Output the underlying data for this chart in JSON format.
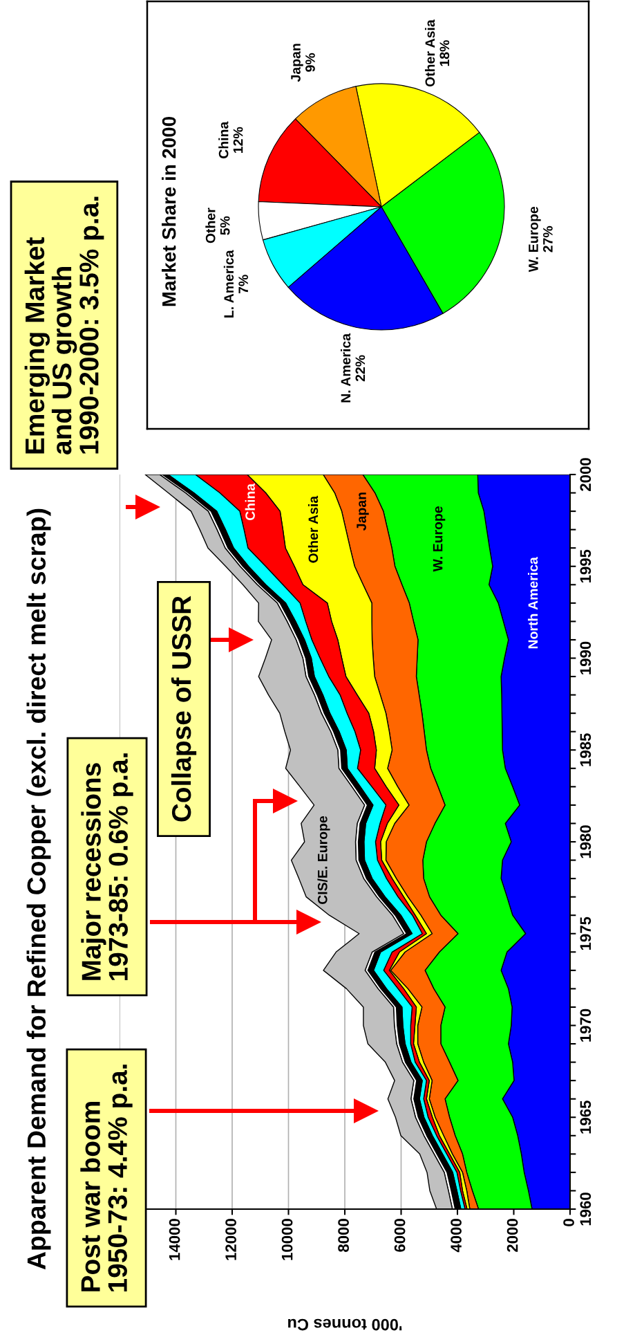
{
  "chart_data": [
    {
      "type": "area",
      "title": "Apparent Demand for Refined Copper (excl. direct melt scrap)",
      "xlabel": "'000 tonnes Cu",
      "stacked": true,
      "orientation": "horizontal",
      "grid": "x",
      "x": [
        1960,
        1961,
        1962,
        1963,
        1964,
        1965,
        1966,
        1967,
        1968,
        1969,
        1970,
        1971,
        1972,
        1973,
        1974,
        1975,
        1976,
        1977,
        1978,
        1979,
        1980,
        1981,
        1982,
        1983,
        1984,
        1985,
        1986,
        1987,
        1988,
        1989,
        1990,
        1991,
        1992,
        1993,
        1994,
        1995,
        1996,
        1997,
        1998,
        1999,
        2000
      ],
      "series": [
        {
          "name": "North America",
          "color": "#0000ff",
          "values": [
            1350,
            1480,
            1630,
            1730,
            1860,
            2040,
            2400,
            1990,
            2040,
            2190,
            2090,
            2060,
            2190,
            2450,
            2240,
            1580,
            2040,
            2240,
            2450,
            2400,
            2090,
            2300,
            1790,
            2040,
            2300,
            2400,
            2410,
            2420,
            2430,
            2450,
            2330,
            2190,
            2370,
            2550,
            2880,
            2750,
            2860,
            2960,
            3060,
            3260,
            3280
          ]
        },
        {
          "name": "W. Europe",
          "color": "#00ff00",
          "values": [
            1900,
            1990,
            2040,
            2090,
            2220,
            2240,
            2040,
            1990,
            2240,
            2400,
            2500,
            2380,
            2650,
            2700,
            2400,
            2400,
            2550,
            2750,
            2750,
            2830,
            3010,
            2500,
            2650,
            2650,
            2650,
            2700,
            2770,
            2840,
            2930,
            3010,
            3100,
            3210,
            3190,
            3160,
            3090,
            3470,
            3470,
            3520,
            3570,
            3670,
            4080
          ]
        },
        {
          "name": "Japan",
          "color": "#ff6600",
          "values": [
            310,
            200,
            150,
            360,
            410,
            510,
            560,
            920,
            920,
            820,
            820,
            820,
            920,
            1220,
            1220,
            920,
            710,
            770,
            970,
            1310,
            1430,
            1430,
            1280,
            1430,
            1530,
            1220,
            1240,
            1280,
            1380,
            1480,
            1560,
            1630,
            1480,
            1330,
            1380,
            1430,
            1480,
            1480,
            1480,
            1430,
            1410
          ]
        },
        {
          "name": "Other Asia",
          "color": "#ffff00",
          "values": [
            100,
            150,
            100,
            100,
            150,
            100,
            100,
            100,
            150,
            150,
            100,
            200,
            150,
            50,
            200,
            200,
            200,
            150,
            150,
            150,
            200,
            260,
            360,
            410,
            460,
            560,
            560,
            610,
            820,
            1020,
            1120,
            1220,
            1430,
            1580,
            2140,
            2140,
            2300,
            2240,
            2190,
            2450,
            2700
          ]
        },
        {
          "name": "China",
          "color": "#ff0000",
          "values": [
            70,
            70,
            100,
            100,
            100,
            150,
            100,
            100,
            150,
            100,
            150,
            150,
            200,
            200,
            260,
            150,
            100,
            200,
            200,
            150,
            180,
            260,
            460,
            510,
            610,
            560,
            660,
            770,
            610,
            610,
            770,
            920,
            920,
            970,
            710,
            1020,
            1330,
            1380,
            1430,
            1630,
            1840
          ]
        },
        {
          "color": "#00ffff",
          "values": [
            150,
            130,
            150,
            150,
            150,
            150,
            150,
            150,
            150,
            200,
            280,
            360,
            410,
            360,
            410,
            360,
            410,
            460,
            510,
            460,
            410,
            510,
            460,
            410,
            360,
            510,
            560,
            610,
            610,
            510,
            310,
            260,
            360,
            510,
            610,
            610,
            510,
            660,
            820,
            920,
            970
          ]
        },
        {
          "color": "#000000",
          "values": [
            200,
            200,
            200,
            200,
            200,
            200,
            200,
            200,
            200,
            200,
            200,
            200,
            200,
            200,
            200,
            200,
            200,
            200,
            200,
            200,
            200,
            200,
            200,
            200,
            200,
            200,
            200,
            200,
            200,
            200,
            200,
            200,
            200,
            200,
            200,
            200,
            200,
            200,
            200,
            200,
            200
          ]
        },
        {
          "color": "#ffffff",
          "values": [
            100,
            100,
            100,
            100,
            100,
            100,
            100,
            100,
            100,
            100,
            100,
            100,
            100,
            100,
            100,
            100,
            100,
            100,
            100,
            100,
            100,
            100,
            100,
            100,
            100,
            100,
            100,
            100,
            100,
            100,
            100,
            100,
            100,
            100,
            100,
            100,
            100,
            100,
            100,
            100,
            100
          ]
        },
        {
          "name": "CIS/E. Europe",
          "color": "#c0c0c0",
          "values": [
            560,
            660,
            610,
            510,
            820,
            710,
            820,
            680,
            610,
            1020,
            1100,
            1070,
            1120,
            1480,
            1280,
            1580,
            2240,
            2500,
            2300,
            2300,
            1810,
            1990,
            1790,
            1840,
            1890,
            1680,
            1630,
            1480,
            1630,
            1680,
            1330,
            870,
            1020,
            660,
            510,
            510,
            610,
            610,
            610,
            610,
            510
          ]
        }
      ],
      "xlim": [
        16000,
        0
      ],
      "xticks": [
        0,
        2000,
        4000,
        6000,
        8000,
        10000,
        12000,
        14000,
        {
          "value": 16000,
          "label": null
        }
      ],
      "ylim": [
        1960,
        2000
      ],
      "yticks": [
        1960,
        {
          "value": 1961,
          "label": null
        },
        {
          "value": 1962,
          "label": null
        },
        {
          "value": 1963,
          "label": null
        },
        {
          "value": 1964,
          "label": null
        },
        1965,
        {
          "value": 1966,
          "label": null
        },
        {
          "value": 1967,
          "label": null
        },
        {
          "value": 1968,
          "label": null
        },
        {
          "value": 1969,
          "label": null
        },
        1970,
        {
          "value": 1971,
          "label": null
        },
        {
          "value": 1972,
          "label": null
        },
        {
          "value": 1973,
          "label": null
        },
        {
          "value": 1974,
          "label": null
        },
        1975,
        {
          "value": 1976,
          "label": null
        },
        {
          "value": 1977,
          "label": null
        },
        {
          "value": 1978,
          "label": null
        },
        {
          "value": 1979,
          "label": null
        },
        1980,
        {
          "value": 1981,
          "label": null
        },
        {
          "value": 1982,
          "label": null
        },
        {
          "value": 1983,
          "label": null
        },
        {
          "value": 1984,
          "label": null
        },
        1985,
        {
          "value": 1986,
          "label": null
        },
        {
          "value": 1987,
          "label": null
        },
        {
          "value": 1988,
          "label": null
        },
        {
          "value": 1989,
          "label": null
        },
        1990,
        {
          "value": 1991,
          "label": null
        },
        {
          "value": 1992,
          "label": null
        },
        {
          "value": 1993,
          "label": null
        },
        {
          "value": 1994,
          "label": null
        },
        1995,
        {
          "value": 1996,
          "label": null
        },
        {
          "value": 1997,
          "label": null
        },
        {
          "value": 1998,
          "label": null
        },
        {
          "value": 1999,
          "label": null
        },
        2000
      ],
      "annotations": [
        "Post war boom\n1950-73: 4.4% p.a.",
        "Major recessions\n1973-85: 0.6% p.a.",
        "Collapse of USSR",
        "Emerging Market\nand US growth\n1990-2000: 3.5% p.a."
      ]
    },
    {
      "type": "pie",
      "title": "Market Share in 2000",
      "categories": [
        "W. Europe",
        "Other Asia",
        "Japan",
        "China",
        "Other",
        "L. America",
        "N. America"
      ],
      "values": [
        27,
        18,
        9,
        12,
        5,
        7,
        22
      ],
      "value_labels": [
        "27%",
        "18%",
        "9%",
        "12%",
        "5%",
        "7%",
        "22%"
      ],
      "colors": [
        "#00ff00",
        "#ffff00",
        "#ff9900",
        "#ff0000",
        "#ffffff",
        "#00ffff",
        "#0000ff"
      ]
    }
  ]
}
